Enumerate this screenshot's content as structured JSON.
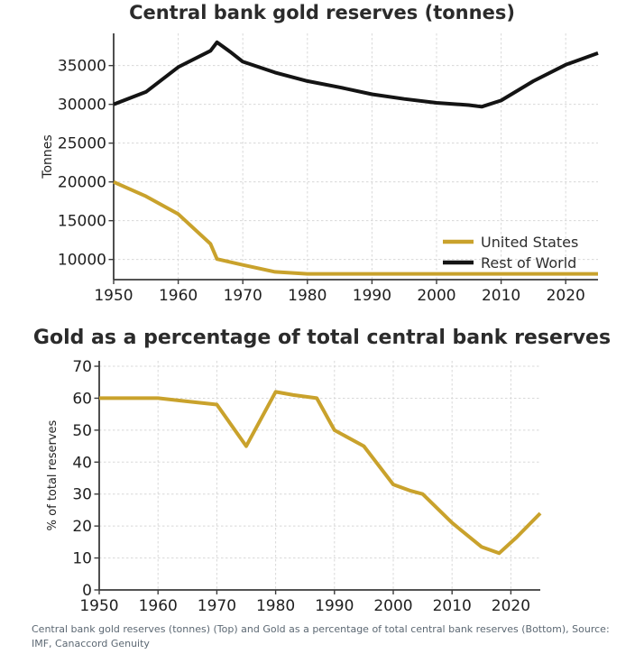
{
  "page": {
    "caption": "Central bank gold reserves (tonnes) (Top) and Gold as a percentage of total central bank reserves (Bottom), Source: IMF, Canaccord Genuity",
    "caption_color": "#5c6873",
    "background": "#ffffff"
  },
  "colors": {
    "gold_line": "#C9A22C",
    "black_line": "#141414",
    "axis": "#3b3b3b",
    "grid": "#d8d8d8",
    "title_text": "#2b2b2b",
    "tick_text": "#1f1f1f"
  },
  "chart_data": [
    {
      "type": "line",
      "title": "Central bank gold reserves (tonnes)",
      "xlabel": "",
      "ylabel": "Tonnes",
      "xlim": [
        1950,
        2025
      ],
      "ylim": [
        7400,
        39150
      ],
      "x_ticks": [
        1950,
        1960,
        1970,
        1980,
        1990,
        2000,
        2010,
        2020
      ],
      "y_ticks": [
        10000,
        15000,
        20000,
        25000,
        30000,
        35000
      ],
      "grid": true,
      "legend_position": "lower right",
      "series": [
        {
          "name": "United States",
          "color": "#C9A22C",
          "x": [
            1950,
            1955,
            1960,
            1965,
            1966,
            1970,
            1975,
            1980,
            1990,
            2000,
            2010,
            2020,
            2025
          ],
          "y": [
            20000,
            18150,
            15850,
            12000,
            10050,
            9300,
            8400,
            8150,
            8150,
            8150,
            8150,
            8150,
            8150
          ]
        },
        {
          "name": "Rest of World",
          "color": "#141414",
          "x": [
            1950,
            1955,
            1960,
            1965,
            1966,
            1968,
            1970,
            1975,
            1980,
            1985,
            1990,
            1995,
            2000,
            2005,
            2007,
            2010,
            2015,
            2020,
            2025
          ],
          "y": [
            30000,
            31600,
            34800,
            36900,
            38000,
            36800,
            35500,
            34100,
            33000,
            32200,
            31300,
            30700,
            30200,
            29900,
            29700,
            30500,
            33000,
            35100,
            36600
          ]
        }
      ]
    },
    {
      "type": "line",
      "title": "Gold as a percentage of total central bank reserves",
      "xlabel": "",
      "ylabel": "% of total reserves",
      "xlim": [
        1950,
        2025
      ],
      "ylim": [
        0,
        71.7
      ],
      "x_ticks": [
        1950,
        1960,
        1970,
        1980,
        1990,
        2000,
        2010,
        2020
      ],
      "y_ticks": [
        0,
        10,
        20,
        30,
        40,
        50,
        60,
        70
      ],
      "grid": true,
      "legend_position": null,
      "series": [
        {
          "name": "",
          "color": "#C9A22C",
          "x": [
            1950,
            1960,
            1965,
            1970,
            1975,
            1980,
            1983,
            1987,
            1990,
            1995,
            2000,
            2003,
            2005,
            2010,
            2015,
            2018,
            2021,
            2025
          ],
          "y": [
            60,
            60,
            59,
            58,
            45,
            62,
            61,
            60,
            50,
            45,
            33,
            31,
            30,
            21,
            13.5,
            11.5,
            16.5,
            24
          ]
        }
      ]
    }
  ]
}
